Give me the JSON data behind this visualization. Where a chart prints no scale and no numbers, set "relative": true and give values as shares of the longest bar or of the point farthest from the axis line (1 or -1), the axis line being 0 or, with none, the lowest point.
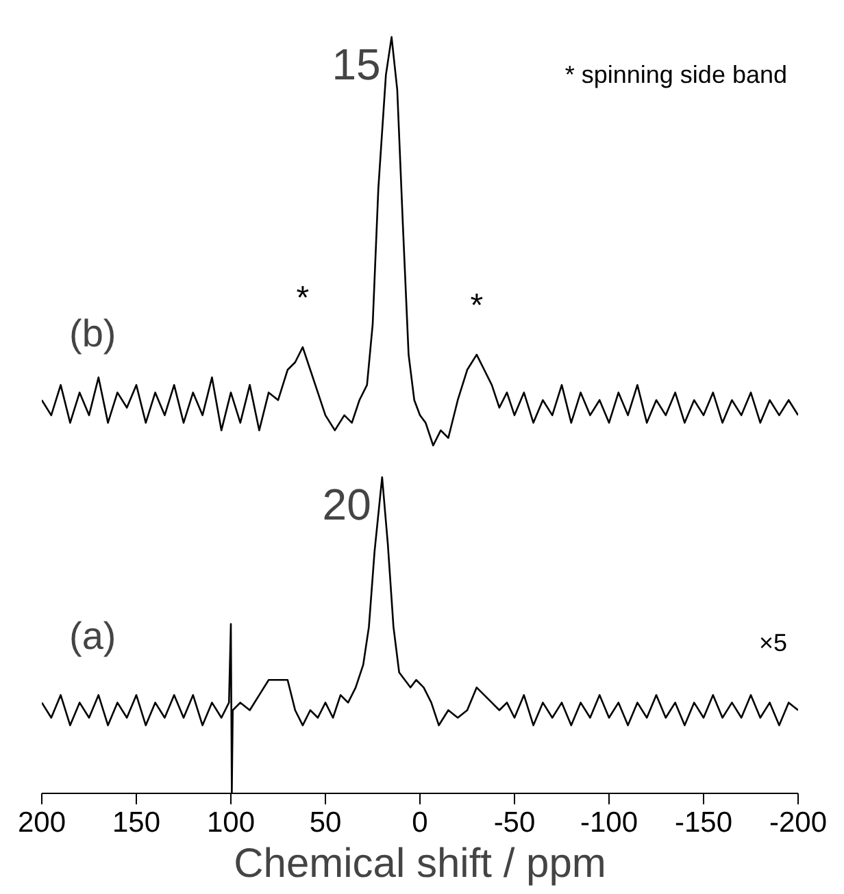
{
  "chart_data": {
    "type": "line",
    "relative": true,
    "xlabel": "Chemical shift / ppm",
    "xlim": [
      200,
      -200
    ],
    "xticks": [
      200,
      150,
      100,
      50,
      0,
      -50,
      -100,
      -150,
      -200
    ],
    "grid": false,
    "marker": "none",
    "line_style": "solid",
    "series": [
      {
        "name": "(b)",
        "color": "#000000",
        "x": [
          200,
          195,
          190,
          185,
          180,
          175,
          170,
          165,
          160,
          155,
          150,
          145,
          140,
          135,
          130,
          125,
          120,
          115,
          110,
          105,
          100,
          95,
          90,
          85,
          80,
          75,
          70,
          66,
          62,
          58,
          54,
          50,
          45,
          40,
          36,
          32,
          28,
          25,
          22,
          18,
          15,
          12,
          9,
          6,
          3,
          0,
          -3,
          -7,
          -11,
          -15,
          -20,
          -25,
          -30,
          -34,
          -38,
          -42,
          -46,
          -50,
          -55,
          -60,
          -65,
          -70,
          -75,
          -80,
          -85,
          -90,
          -95,
          -100,
          -105,
          -110,
          -115,
          -120,
          -125,
          -130,
          -135,
          -140,
          -145,
          -150,
          -155,
          -160,
          -165,
          -170,
          -175,
          -180,
          -185,
          -190,
          -195,
          -200
        ],
        "values": [
          0.52,
          0.5,
          0.54,
          0.49,
          0.53,
          0.5,
          0.55,
          0.49,
          0.53,
          0.51,
          0.54,
          0.49,
          0.53,
          0.5,
          0.54,
          0.49,
          0.53,
          0.5,
          0.55,
          0.48,
          0.53,
          0.49,
          0.54,
          0.48,
          0.53,
          0.52,
          0.56,
          0.57,
          0.59,
          0.56,
          0.53,
          0.5,
          0.48,
          0.5,
          0.49,
          0.52,
          0.54,
          0.62,
          0.8,
          0.95,
          1.0,
          0.93,
          0.75,
          0.58,
          0.52,
          0.5,
          0.49,
          0.46,
          0.48,
          0.47,
          0.52,
          0.56,
          0.58,
          0.56,
          0.54,
          0.51,
          0.53,
          0.5,
          0.53,
          0.49,
          0.52,
          0.5,
          0.54,
          0.49,
          0.53,
          0.5,
          0.52,
          0.49,
          0.53,
          0.5,
          0.54,
          0.49,
          0.52,
          0.5,
          0.53,
          0.49,
          0.52,
          0.5,
          0.53,
          0.49,
          0.52,
          0.5,
          0.53,
          0.49,
          0.52,
          0.5,
          0.52,
          0.5
        ]
      },
      {
        "name": "(a)",
        "color": "#000000",
        "x": [
          200,
          195,
          190,
          185,
          180,
          175,
          170,
          165,
          160,
          155,
          150,
          145,
          140,
          135,
          130,
          125,
          120,
          115,
          110,
          105,
          101,
          100,
          99.5,
          99,
          95,
          90,
          85,
          80,
          75,
          70,
          66,
          62,
          58,
          54,
          50,
          46,
          42,
          38,
          34,
          30,
          27,
          24,
          20,
          17,
          14,
          11,
          8,
          5,
          2,
          -2,
          -6,
          -10,
          -15,
          -20,
          -25,
          -30,
          -34,
          -38,
          -42,
          -46,
          -50,
          -55,
          -60,
          -65,
          -70,
          -75,
          -80,
          -85,
          -90,
          -95,
          -100,
          -105,
          -110,
          -115,
          -120,
          -125,
          -130,
          -135,
          -140,
          -145,
          -150,
          -155,
          -160,
          -165,
          -170,
          -175,
          -180,
          -185,
          -190,
          -195,
          -200
        ],
        "values": [
          0.12,
          0.1,
          0.13,
          0.09,
          0.12,
          0.1,
          0.13,
          0.09,
          0.12,
          0.1,
          0.13,
          0.09,
          0.12,
          0.1,
          0.13,
          0.1,
          0.13,
          0.09,
          0.12,
          0.1,
          0.12,
          0.224,
          0,
          0.11,
          0.12,
          0.11,
          0.13,
          0.15,
          0.15,
          0.15,
          0.11,
          0.09,
          0.11,
          0.1,
          0.12,
          0.1,
          0.13,
          0.12,
          0.14,
          0.17,
          0.22,
          0.32,
          0.418,
          0.33,
          0.22,
          0.16,
          0.15,
          0.14,
          0.15,
          0.14,
          0.12,
          0.09,
          0.11,
          0.1,
          0.11,
          0.14,
          0.13,
          0.12,
          0.11,
          0.12,
          0.1,
          0.13,
          0.09,
          0.12,
          0.1,
          0.12,
          0.09,
          0.12,
          0.1,
          0.13,
          0.1,
          0.12,
          0.09,
          0.12,
          0.1,
          0.13,
          0.1,
          0.12,
          0.09,
          0.12,
          0.1,
          0.13,
          0.1,
          0.12,
          0.1,
          0.13,
          0.1,
          0.12,
          0.09,
          0.12,
          0.11
        ]
      }
    ],
    "annotations": [
      {
        "text": "15",
        "x": 15,
        "y": 1.0
      },
      {
        "text": "20",
        "x": 20,
        "y": 0.418
      },
      {
        "text": "*",
        "x": 62,
        "y": 0.59
      },
      {
        "text": "*",
        "x": -30,
        "y": 0.58
      },
      "* spinning side band",
      "×5"
    ]
  }
}
